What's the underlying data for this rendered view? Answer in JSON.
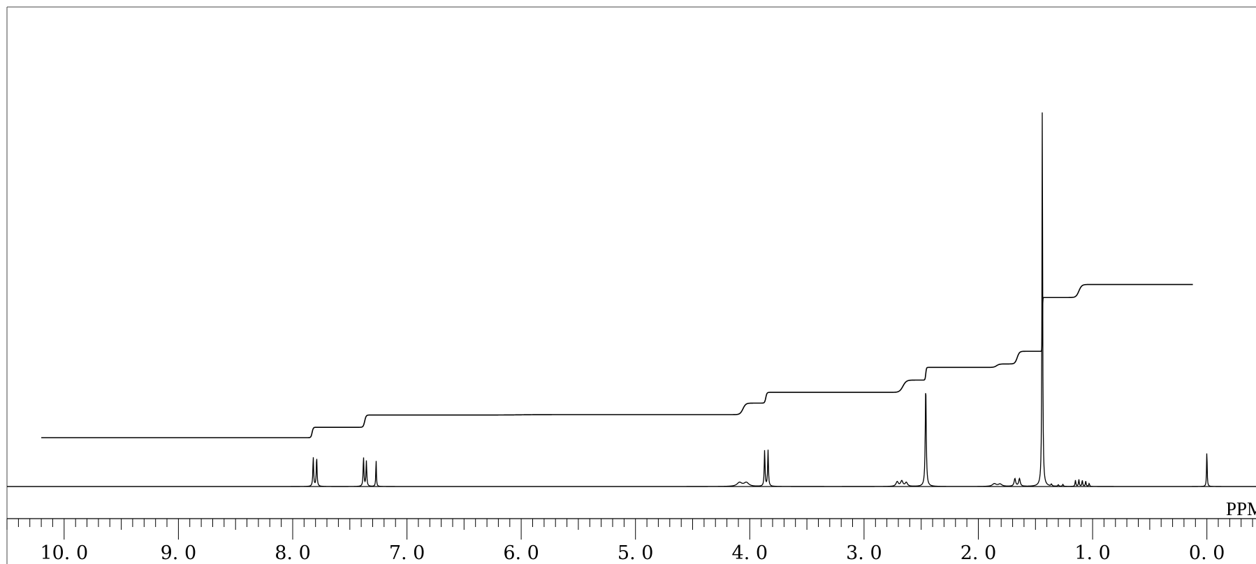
{
  "chart_data": {
    "type": "line",
    "title": "",
    "xlabel": "PPM",
    "ylabel": "",
    "x_reversed": true,
    "xlim": [
      10.5,
      -0.43
    ],
    "grid": false,
    "x_ticks": {
      "major": [
        10.0,
        9.0,
        8.0,
        7.0,
        6.0,
        5.0,
        4.0,
        3.0,
        2.0,
        1.0,
        0.0
      ],
      "major_labels": [
        "10. 0",
        "9. 0",
        "8. 0",
        "7. 0",
        "6. 0",
        "5. 0",
        "4. 0",
        "3. 0",
        "2. 0",
        "1. 0",
        "0. 0"
      ],
      "minor_step": 0.1
    },
    "series": [
      {
        "kind": "spectrum",
        "peaks": [
          {
            "ppm": 7.82,
            "height": 0.076,
            "width": 0.004
          },
          {
            "ppm": 7.79,
            "height": 0.076,
            "width": 0.004
          },
          {
            "ppm": 7.38,
            "height": 0.076,
            "width": 0.004
          },
          {
            "ppm": 7.355,
            "height": 0.066,
            "width": 0.004
          },
          {
            "ppm": 7.27,
            "height": 0.07,
            "width": 0.003
          },
          {
            "ppm": 4.09,
            "height": 0.01,
            "width": 0.025
          },
          {
            "ppm": 4.03,
            "height": 0.01,
            "width": 0.025
          },
          {
            "ppm": 3.87,
            "height": 0.094,
            "width": 0.004
          },
          {
            "ppm": 3.84,
            "height": 0.094,
            "width": 0.004
          },
          {
            "ppm": 2.71,
            "height": 0.012,
            "width": 0.012
          },
          {
            "ppm": 2.67,
            "height": 0.014,
            "width": 0.012
          },
          {
            "ppm": 2.63,
            "height": 0.01,
            "width": 0.012
          },
          {
            "ppm": 2.46,
            "height": 0.263,
            "width": 0.005
          },
          {
            "ppm": 1.86,
            "height": 0.007,
            "width": 0.02
          },
          {
            "ppm": 1.81,
            "height": 0.006,
            "width": 0.02
          },
          {
            "ppm": 1.68,
            "height": 0.02,
            "width": 0.008
          },
          {
            "ppm": 1.64,
            "height": 0.02,
            "width": 0.008
          },
          {
            "ppm": 1.44,
            "height": 1.0,
            "width": 0.0035
          },
          {
            "ppm": 1.36,
            "height": 0.005,
            "width": 0.005
          },
          {
            "ppm": 1.3,
            "height": 0.004,
            "width": 0.005
          },
          {
            "ppm": 1.26,
            "height": 0.005,
            "width": 0.005
          },
          {
            "ppm": 1.15,
            "height": 0.016,
            "width": 0.004
          },
          {
            "ppm": 1.12,
            "height": 0.018,
            "width": 0.004
          },
          {
            "ppm": 1.09,
            "height": 0.016,
            "width": 0.004
          },
          {
            "ppm": 1.06,
            "height": 0.014,
            "width": 0.004
          },
          {
            "ppm": 1.03,
            "height": 0.008,
            "width": 0.004
          },
          {
            "ppm": 0.0,
            "height": 0.095,
            "width": 0.003
          }
        ]
      },
      {
        "kind": "integral",
        "x_range": [
          10.2,
          0.12
        ],
        "steps": [
          {
            "ppm": 7.83,
            "rise": 0.027,
            "width": 0.02
          },
          {
            "ppm": 7.37,
            "rise": 0.032,
            "width": 0.025
          },
          {
            "ppm": 6.0,
            "rise": 0.001,
            "width": 0.3
          },
          {
            "ppm": 4.06,
            "rise": 0.03,
            "width": 0.05
          },
          {
            "ppm": 3.86,
            "rise": 0.028,
            "width": 0.02
          },
          {
            "ppm": 2.66,
            "rise": 0.032,
            "width": 0.06
          },
          {
            "ppm": 2.46,
            "rise": 0.033,
            "width": 0.012
          },
          {
            "ppm": 1.84,
            "rise": 0.009,
            "width": 0.05
          },
          {
            "ppm": 1.66,
            "rise": 0.033,
            "width": 0.04
          },
          {
            "ppm": 1.44,
            "rise": 0.14,
            "width": 0.006
          },
          {
            "ppm": 1.12,
            "rise": 0.034,
            "width": 0.05
          }
        ]
      }
    ]
  }
}
